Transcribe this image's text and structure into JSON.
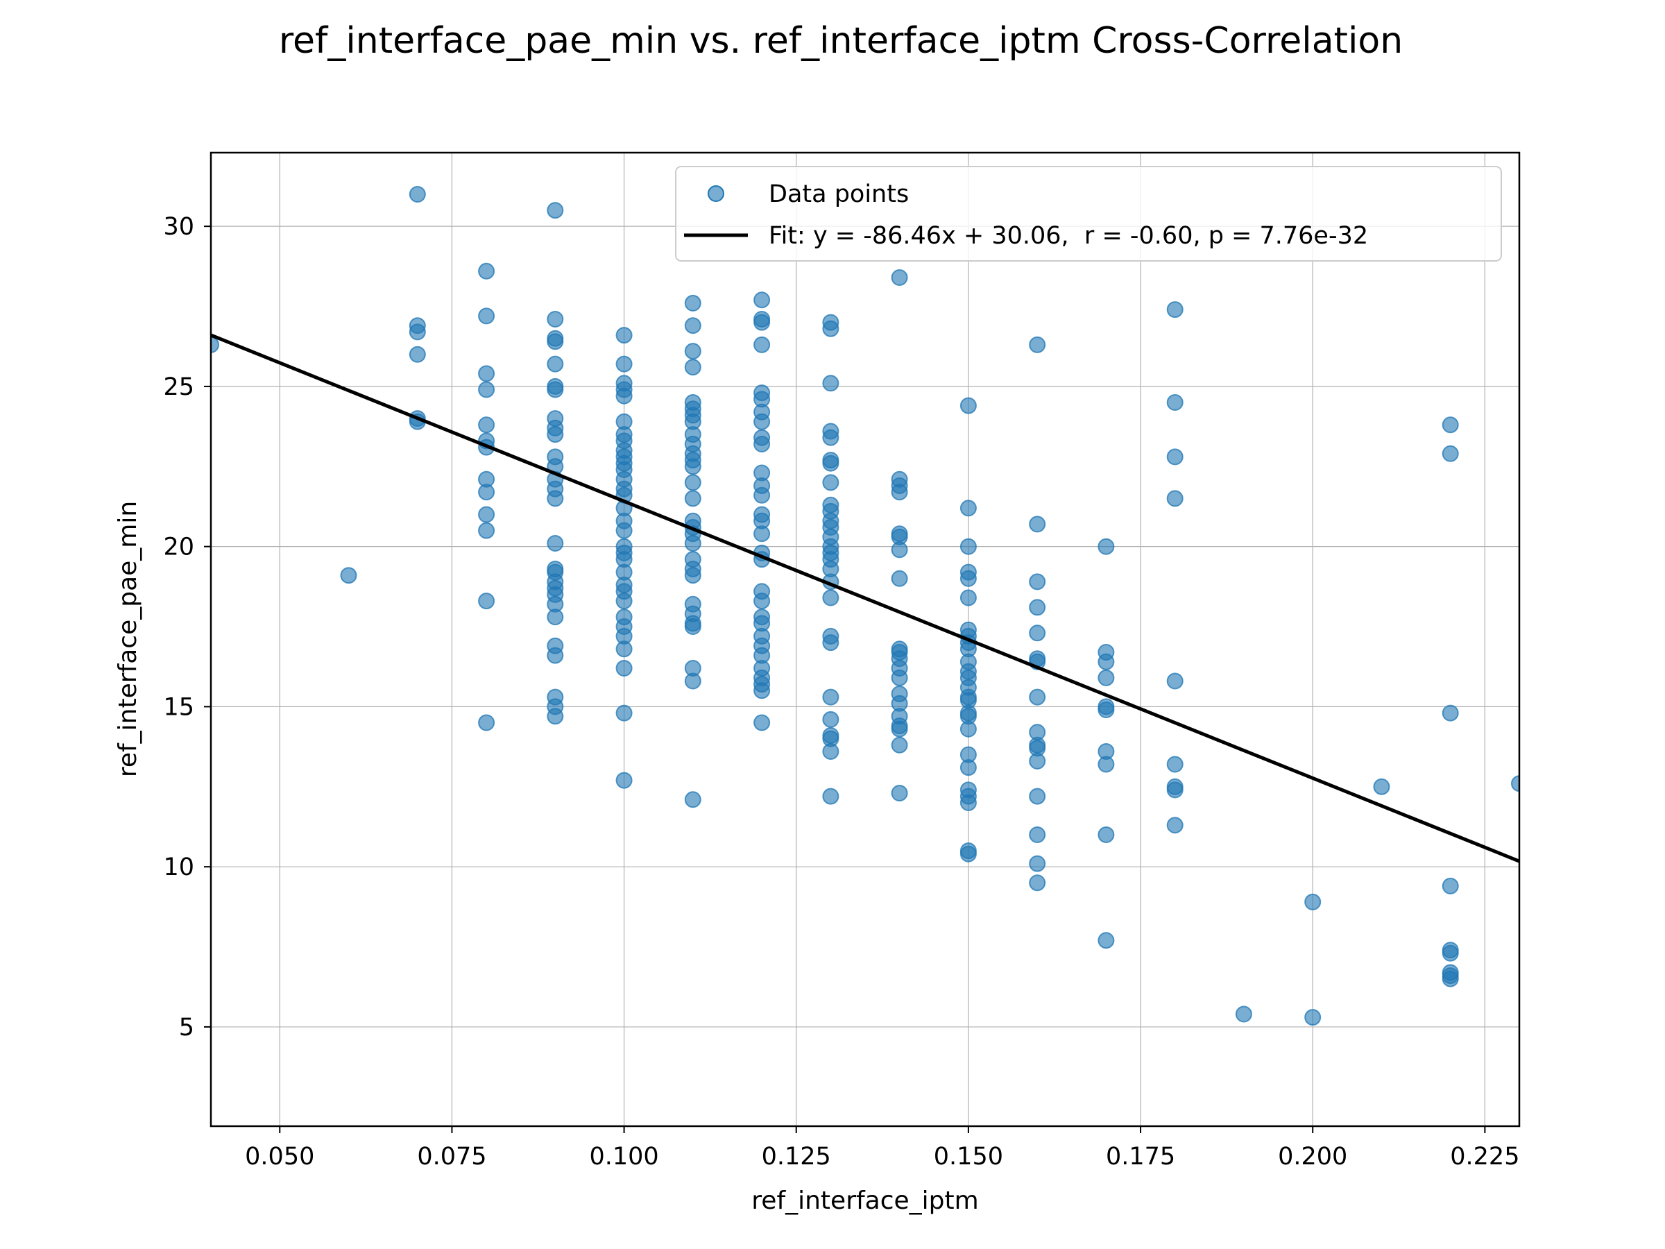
{
  "chart_data": {
    "type": "scatter",
    "title": "ref_interface_pae_min vs. ref_interface_iptm Cross-Correlation",
    "xlabel": "ref_interface_iptm",
    "ylabel": "ref_interface_pae_min",
    "xlim": [
      0.04,
      0.23
    ],
    "ylim": [
      1.9,
      32.3
    ],
    "xticks": [
      0.05,
      0.075,
      0.1,
      0.125,
      0.15,
      0.175,
      0.2,
      0.225
    ],
    "xtick_labels": [
      "0.050",
      "0.075",
      "0.100",
      "0.125",
      "0.150",
      "0.175",
      "0.200",
      "0.225"
    ],
    "yticks": [
      5,
      10,
      15,
      20,
      25,
      30
    ],
    "ytick_labels": [
      "5",
      "10",
      "15",
      "20",
      "25",
      "30"
    ],
    "grid": true,
    "legend_position": "top-right",
    "colors": {
      "points": "#1f77b4",
      "fit": "#000000"
    },
    "series": [
      {
        "name": "Data points",
        "kind": "scatter",
        "points": [
          [
            0.04,
            26.3
          ],
          [
            0.06,
            19.1
          ],
          [
            0.07,
            31.0
          ],
          [
            0.07,
            26.9
          ],
          [
            0.07,
            26.7
          ],
          [
            0.07,
            26.0
          ],
          [
            0.07,
            24.0
          ],
          [
            0.07,
            23.9
          ],
          [
            0.08,
            28.6
          ],
          [
            0.08,
            27.2
          ],
          [
            0.08,
            25.4
          ],
          [
            0.08,
            24.9
          ],
          [
            0.08,
            23.8
          ],
          [
            0.08,
            23.3
          ],
          [
            0.08,
            23.1
          ],
          [
            0.08,
            22.1
          ],
          [
            0.08,
            21.7
          ],
          [
            0.08,
            21.0
          ],
          [
            0.08,
            20.5
          ],
          [
            0.08,
            18.3
          ],
          [
            0.08,
            14.5
          ],
          [
            0.09,
            30.5
          ],
          [
            0.09,
            27.1
          ],
          [
            0.09,
            26.5
          ],
          [
            0.09,
            26.4
          ],
          [
            0.09,
            25.7
          ],
          [
            0.09,
            25.0
          ],
          [
            0.09,
            24.9
          ],
          [
            0.09,
            24.0
          ],
          [
            0.09,
            23.7
          ],
          [
            0.09,
            23.5
          ],
          [
            0.09,
            22.8
          ],
          [
            0.09,
            22.5
          ],
          [
            0.09,
            22.1
          ],
          [
            0.09,
            21.8
          ],
          [
            0.09,
            21.5
          ],
          [
            0.09,
            20.1
          ],
          [
            0.09,
            19.3
          ],
          [
            0.09,
            19.2
          ],
          [
            0.09,
            18.9
          ],
          [
            0.09,
            18.7
          ],
          [
            0.09,
            18.5
          ],
          [
            0.09,
            18.2
          ],
          [
            0.09,
            17.8
          ],
          [
            0.09,
            16.9
          ],
          [
            0.09,
            16.6
          ],
          [
            0.09,
            15.3
          ],
          [
            0.09,
            15.0
          ],
          [
            0.09,
            14.7
          ],
          [
            0.1,
            26.6
          ],
          [
            0.1,
            25.7
          ],
          [
            0.1,
            25.1
          ],
          [
            0.1,
            24.9
          ],
          [
            0.1,
            24.7
          ],
          [
            0.1,
            23.9
          ],
          [
            0.1,
            23.5
          ],
          [
            0.1,
            23.3
          ],
          [
            0.1,
            23.0
          ],
          [
            0.1,
            22.8
          ],
          [
            0.1,
            22.6
          ],
          [
            0.1,
            22.4
          ],
          [
            0.1,
            22.1
          ],
          [
            0.1,
            21.8
          ],
          [
            0.1,
            21.6
          ],
          [
            0.1,
            21.2
          ],
          [
            0.1,
            20.8
          ],
          [
            0.1,
            20.5
          ],
          [
            0.1,
            20.0
          ],
          [
            0.1,
            19.8
          ],
          [
            0.1,
            19.6
          ],
          [
            0.1,
            19.2
          ],
          [
            0.1,
            18.8
          ],
          [
            0.1,
            18.6
          ],
          [
            0.1,
            18.3
          ],
          [
            0.1,
            17.8
          ],
          [
            0.1,
            17.5
          ],
          [
            0.1,
            17.2
          ],
          [
            0.1,
            16.8
          ],
          [
            0.1,
            16.2
          ],
          [
            0.1,
            14.8
          ],
          [
            0.1,
            12.7
          ],
          [
            0.11,
            27.6
          ],
          [
            0.11,
            26.9
          ],
          [
            0.11,
            26.1
          ],
          [
            0.11,
            25.6
          ],
          [
            0.11,
            24.5
          ],
          [
            0.11,
            24.3
          ],
          [
            0.11,
            24.1
          ],
          [
            0.11,
            23.9
          ],
          [
            0.11,
            23.5
          ],
          [
            0.11,
            23.2
          ],
          [
            0.11,
            22.9
          ],
          [
            0.11,
            22.7
          ],
          [
            0.11,
            22.5
          ],
          [
            0.11,
            22.0
          ],
          [
            0.11,
            21.5
          ],
          [
            0.11,
            20.8
          ],
          [
            0.11,
            20.6
          ],
          [
            0.11,
            20.4
          ],
          [
            0.11,
            20.1
          ],
          [
            0.11,
            19.6
          ],
          [
            0.11,
            19.3
          ],
          [
            0.11,
            19.1
          ],
          [
            0.11,
            18.2
          ],
          [
            0.11,
            17.9
          ],
          [
            0.11,
            17.6
          ],
          [
            0.11,
            17.5
          ],
          [
            0.11,
            16.2
          ],
          [
            0.11,
            15.8
          ],
          [
            0.11,
            12.1
          ],
          [
            0.12,
            27.7
          ],
          [
            0.12,
            27.1
          ],
          [
            0.12,
            27.0
          ],
          [
            0.12,
            26.3
          ],
          [
            0.12,
            24.8
          ],
          [
            0.12,
            24.6
          ],
          [
            0.12,
            24.2
          ],
          [
            0.12,
            23.9
          ],
          [
            0.12,
            23.4
          ],
          [
            0.12,
            23.2
          ],
          [
            0.12,
            22.3
          ],
          [
            0.12,
            21.9
          ],
          [
            0.12,
            21.6
          ],
          [
            0.12,
            21.0
          ],
          [
            0.12,
            20.8
          ],
          [
            0.12,
            20.4
          ],
          [
            0.12,
            19.8
          ],
          [
            0.12,
            19.6
          ],
          [
            0.12,
            18.6
          ],
          [
            0.12,
            18.3
          ],
          [
            0.12,
            17.8
          ],
          [
            0.12,
            17.6
          ],
          [
            0.12,
            17.2
          ],
          [
            0.12,
            16.9
          ],
          [
            0.12,
            16.6
          ],
          [
            0.12,
            16.2
          ],
          [
            0.12,
            15.9
          ],
          [
            0.12,
            15.7
          ],
          [
            0.12,
            15.5
          ],
          [
            0.12,
            14.5
          ],
          [
            0.13,
            27.0
          ],
          [
            0.13,
            26.8
          ],
          [
            0.13,
            25.1
          ],
          [
            0.13,
            23.6
          ],
          [
            0.13,
            23.4
          ],
          [
            0.13,
            22.7
          ],
          [
            0.13,
            22.6
          ],
          [
            0.13,
            22.0
          ],
          [
            0.13,
            21.3
          ],
          [
            0.13,
            21.1
          ],
          [
            0.13,
            20.8
          ],
          [
            0.13,
            20.6
          ],
          [
            0.13,
            20.3
          ],
          [
            0.13,
            20.0
          ],
          [
            0.13,
            19.8
          ],
          [
            0.13,
            19.6
          ],
          [
            0.13,
            19.3
          ],
          [
            0.13,
            18.9
          ],
          [
            0.13,
            18.4
          ],
          [
            0.13,
            17.2
          ],
          [
            0.13,
            17.0
          ],
          [
            0.13,
            15.3
          ],
          [
            0.13,
            14.6
          ],
          [
            0.13,
            14.1
          ],
          [
            0.13,
            14.0
          ],
          [
            0.13,
            13.6
          ],
          [
            0.13,
            12.2
          ],
          [
            0.14,
            28.4
          ],
          [
            0.14,
            22.1
          ],
          [
            0.14,
            21.9
          ],
          [
            0.14,
            21.7
          ],
          [
            0.14,
            20.4
          ],
          [
            0.14,
            20.3
          ],
          [
            0.14,
            19.9
          ],
          [
            0.14,
            19.0
          ],
          [
            0.14,
            16.8
          ],
          [
            0.14,
            16.7
          ],
          [
            0.14,
            16.5
          ],
          [
            0.14,
            16.2
          ],
          [
            0.14,
            15.9
          ],
          [
            0.14,
            15.4
          ],
          [
            0.14,
            15.1
          ],
          [
            0.14,
            14.7
          ],
          [
            0.14,
            14.4
          ],
          [
            0.14,
            14.3
          ],
          [
            0.14,
            13.8
          ],
          [
            0.14,
            12.3
          ],
          [
            0.15,
            24.4
          ],
          [
            0.15,
            21.2
          ],
          [
            0.15,
            20.0
          ],
          [
            0.15,
            19.2
          ],
          [
            0.15,
            19.0
          ],
          [
            0.15,
            18.4
          ],
          [
            0.15,
            17.4
          ],
          [
            0.15,
            17.2
          ],
          [
            0.15,
            17.0
          ],
          [
            0.15,
            16.8
          ],
          [
            0.15,
            16.4
          ],
          [
            0.15,
            16.1
          ],
          [
            0.15,
            15.9
          ],
          [
            0.15,
            15.6
          ],
          [
            0.15,
            15.3
          ],
          [
            0.15,
            15.2
          ],
          [
            0.15,
            14.8
          ],
          [
            0.15,
            14.7
          ],
          [
            0.15,
            14.3
          ],
          [
            0.15,
            13.5
          ],
          [
            0.15,
            13.1
          ],
          [
            0.15,
            12.4
          ],
          [
            0.15,
            12.2
          ],
          [
            0.15,
            12.0
          ],
          [
            0.15,
            10.5
          ],
          [
            0.15,
            10.4
          ],
          [
            0.16,
            26.3
          ],
          [
            0.16,
            20.7
          ],
          [
            0.16,
            18.9
          ],
          [
            0.16,
            18.1
          ],
          [
            0.16,
            17.3
          ],
          [
            0.16,
            16.5
          ],
          [
            0.16,
            16.4
          ],
          [
            0.16,
            15.3
          ],
          [
            0.16,
            14.2
          ],
          [
            0.16,
            13.8
          ],
          [
            0.16,
            13.7
          ],
          [
            0.16,
            13.3
          ],
          [
            0.16,
            12.2
          ],
          [
            0.16,
            11.0
          ],
          [
            0.16,
            10.1
          ],
          [
            0.16,
            9.5
          ],
          [
            0.17,
            20.0
          ],
          [
            0.17,
            16.7
          ],
          [
            0.17,
            16.4
          ],
          [
            0.17,
            15.9
          ],
          [
            0.17,
            15.0
          ],
          [
            0.17,
            14.9
          ],
          [
            0.17,
            13.6
          ],
          [
            0.17,
            13.2
          ],
          [
            0.17,
            11.0
          ],
          [
            0.17,
            7.7
          ],
          [
            0.18,
            27.4
          ],
          [
            0.18,
            24.5
          ],
          [
            0.18,
            22.8
          ],
          [
            0.18,
            21.5
          ],
          [
            0.18,
            15.8
          ],
          [
            0.18,
            13.2
          ],
          [
            0.18,
            12.5
          ],
          [
            0.18,
            12.4
          ],
          [
            0.18,
            11.3
          ],
          [
            0.19,
            5.4
          ],
          [
            0.2,
            8.9
          ],
          [
            0.2,
            5.3
          ],
          [
            0.21,
            12.5
          ],
          [
            0.22,
            23.8
          ],
          [
            0.22,
            22.9
          ],
          [
            0.22,
            14.8
          ],
          [
            0.22,
            9.4
          ],
          [
            0.22,
            7.4
          ],
          [
            0.22,
            7.3
          ],
          [
            0.22,
            6.7
          ],
          [
            0.22,
            6.6
          ],
          [
            0.22,
            6.5
          ],
          [
            0.23,
            12.6
          ]
        ]
      },
      {
        "name": "Fit: y = -86.46x + 30.06,  r = -0.60, p = 7.76e-32",
        "kind": "line",
        "slope": -86.46,
        "intercept": 30.06
      }
    ]
  }
}
